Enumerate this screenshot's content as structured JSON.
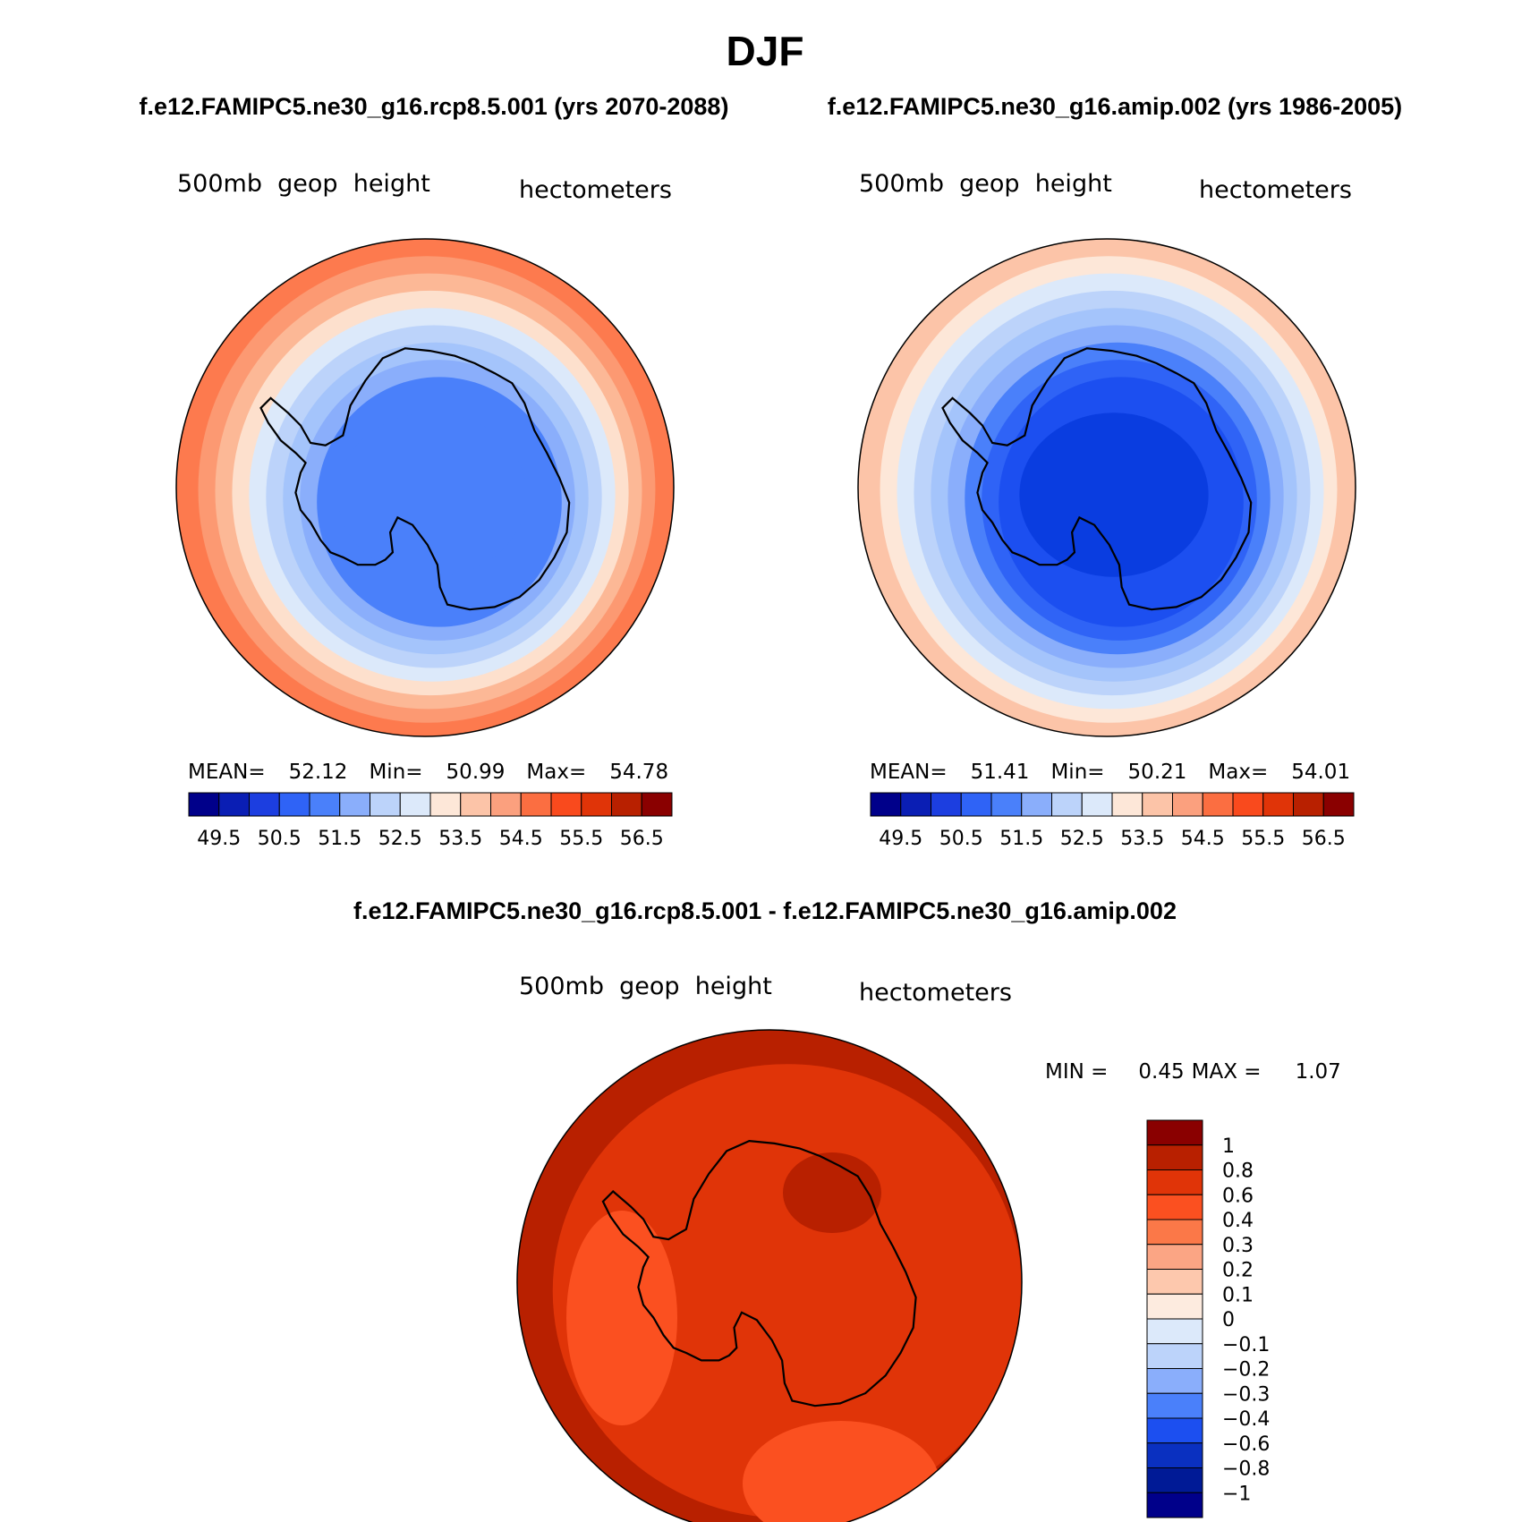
{
  "title": "DJF",
  "header": {
    "left_case": "f.e12.FAMIPC5.ne30_g16.rcp8.5.001 (yrs 2070-2088)",
    "right_case": "f.e12.FAMIPC5.ne30_g16.amip.002 (yrs 1986-2005)"
  },
  "panels": [
    {
      "variable": "500mb  geop  height",
      "units": "hectometers",
      "stats": {
        "mean_label": "MEAN=",
        "mean": "52.12",
        "min_label": "Min=",
        "min": "50.99",
        "max_label": "Max=",
        "max": "54.78"
      },
      "rings": [
        "#fd7a4e",
        "#fc9972",
        "#fcb896",
        "#fde0cd",
        "#dce9fa",
        "#bcd3fa",
        "#a4c4fb",
        "#8aaefb",
        "#4a80fa"
      ],
      "inner_patch": "#4a80fa"
    },
    {
      "variable": "500mb  geop  height",
      "units": "hectometers",
      "stats": {
        "mean_label": "MEAN=",
        "mean": "51.41",
        "min_label": "Min=",
        "min": "50.21",
        "max_label": "Max=",
        "max": "54.01"
      },
      "rings": [
        "#fcc4a8",
        "#fde7d8",
        "#dce9fa",
        "#bcd3fa",
        "#a4c4fb",
        "#8aaefb",
        "#4a80fa",
        "#2f63f6",
        "#1c4ff0"
      ],
      "inner_patch": "#0a3de0"
    }
  ],
  "top_colorbar": {
    "colors": [
      "#00008a",
      "#0a1eb4",
      "#1c3ee0",
      "#2f63f6",
      "#4a80fa",
      "#8aaefb",
      "#bcd3fa",
      "#dce9fa",
      "#fde7d8",
      "#fcc4a8",
      "#fba07e",
      "#fb6e41",
      "#f94a1d",
      "#e03408",
      "#b82000",
      "#8a0000"
    ],
    "labels": [
      "49.5",
      "50.5",
      "51.5",
      "52.5",
      "53.5",
      "54.5",
      "55.5",
      "56.5"
    ]
  },
  "diff": {
    "title": "f.e12.FAMIPC5.ne30_g16.rcp8.5.001 - f.e12.FAMIPC5.ne30_g16.amip.002",
    "variable": "500mb  geop  height",
    "units": "hectometers",
    "stats": {
      "min_label": "MIN =",
      "min": "0.45",
      "max_label": "MAX =",
      "max": "1.07"
    },
    "colorbar": {
      "colors": [
        "#8a0000",
        "#b82000",
        "#e03408",
        "#fb5020",
        "#fb7848",
        "#fba584",
        "#fdc8ad",
        "#fdebdf",
        "#dce9fa",
        "#bcd3fa",
        "#8aaefb",
        "#4a80fa",
        "#1c4ff0",
        "#0a30c0",
        "#001a96",
        "#00008a"
      ],
      "labels": [
        "1",
        "0.8",
        "0.6",
        "0.4",
        "0.3",
        "0.2",
        "0.1",
        "0",
        "−0.1",
        "−0.2",
        "−0.3",
        "−0.4",
        "−0.6",
        "−0.8",
        "−1"
      ]
    }
  },
  "colors": {
    "coast": "#000000",
    "diff_base": "#e03408",
    "diff_light": "#fb5020",
    "diff_dark": "#b82000"
  }
}
